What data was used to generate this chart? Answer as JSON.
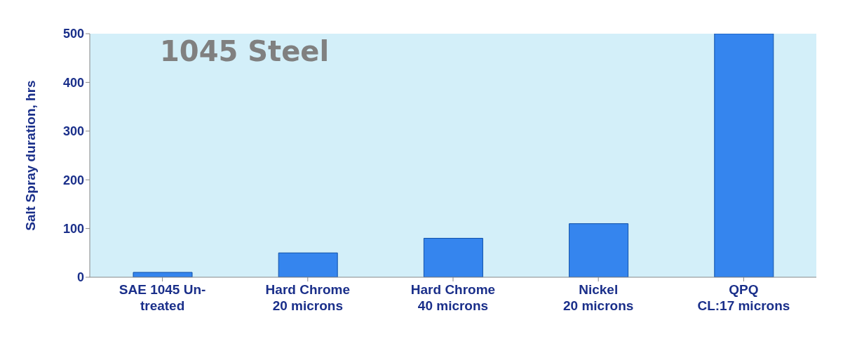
{
  "chart_data": {
    "type": "bar",
    "title": "1045 Steel",
    "ylabel": "Salt Spray duration, hrs",
    "categories": [
      "SAE 1045 Un-\ntreated",
      "Hard Chrome\n20 microns",
      "Hard Chrome\n40 microns",
      "Nickel\n20 microns",
      "QPQ\nCL:17 microns"
    ],
    "values": [
      10,
      50,
      80,
      110,
      500
    ],
    "color": "#3585ee",
    "ylim": [
      0,
      500
    ],
    "yticks": [
      0,
      100,
      200,
      300,
      400,
      500
    ],
    "grid": false
  }
}
